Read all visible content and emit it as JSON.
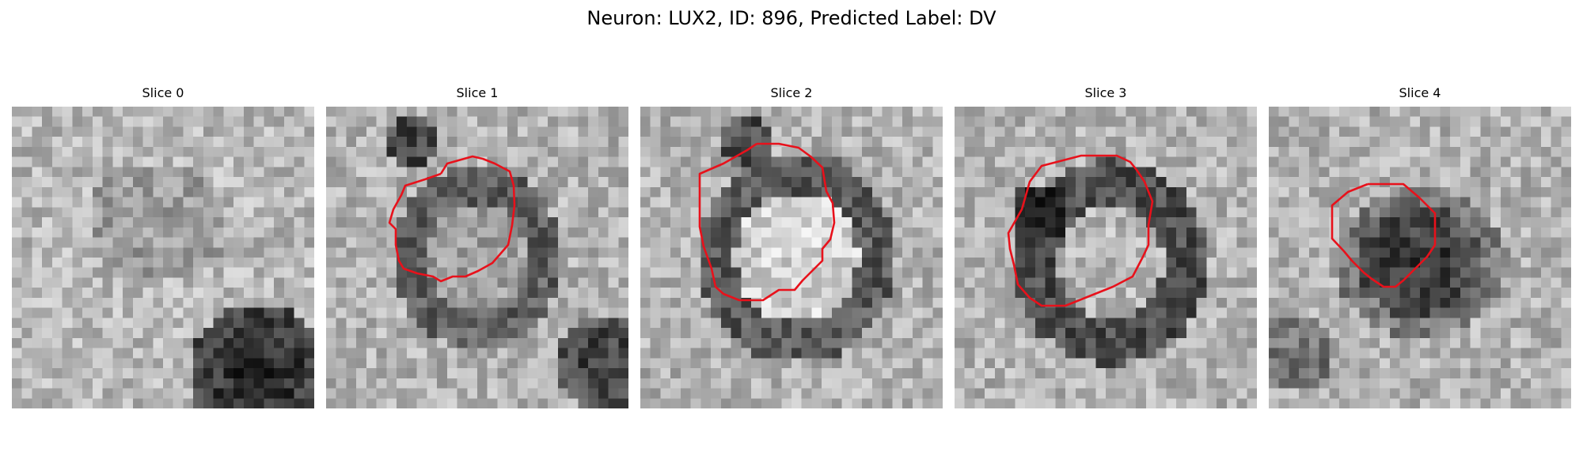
{
  "figure": {
    "title": "Neuron: LUX2, ID: 896, Predicted Label: DV"
  },
  "panels": [
    {
      "title": "Slice 0",
      "contour": false
    },
    {
      "title": "Slice 1",
      "contour": true
    },
    {
      "title": "Slice 2",
      "contour": true
    },
    {
      "title": "Slice 3",
      "contour": true
    },
    {
      "title": "Slice 4",
      "contour": true
    }
  ],
  "colors": {
    "contour": "#e8111b",
    "background": "#ffffff"
  }
}
